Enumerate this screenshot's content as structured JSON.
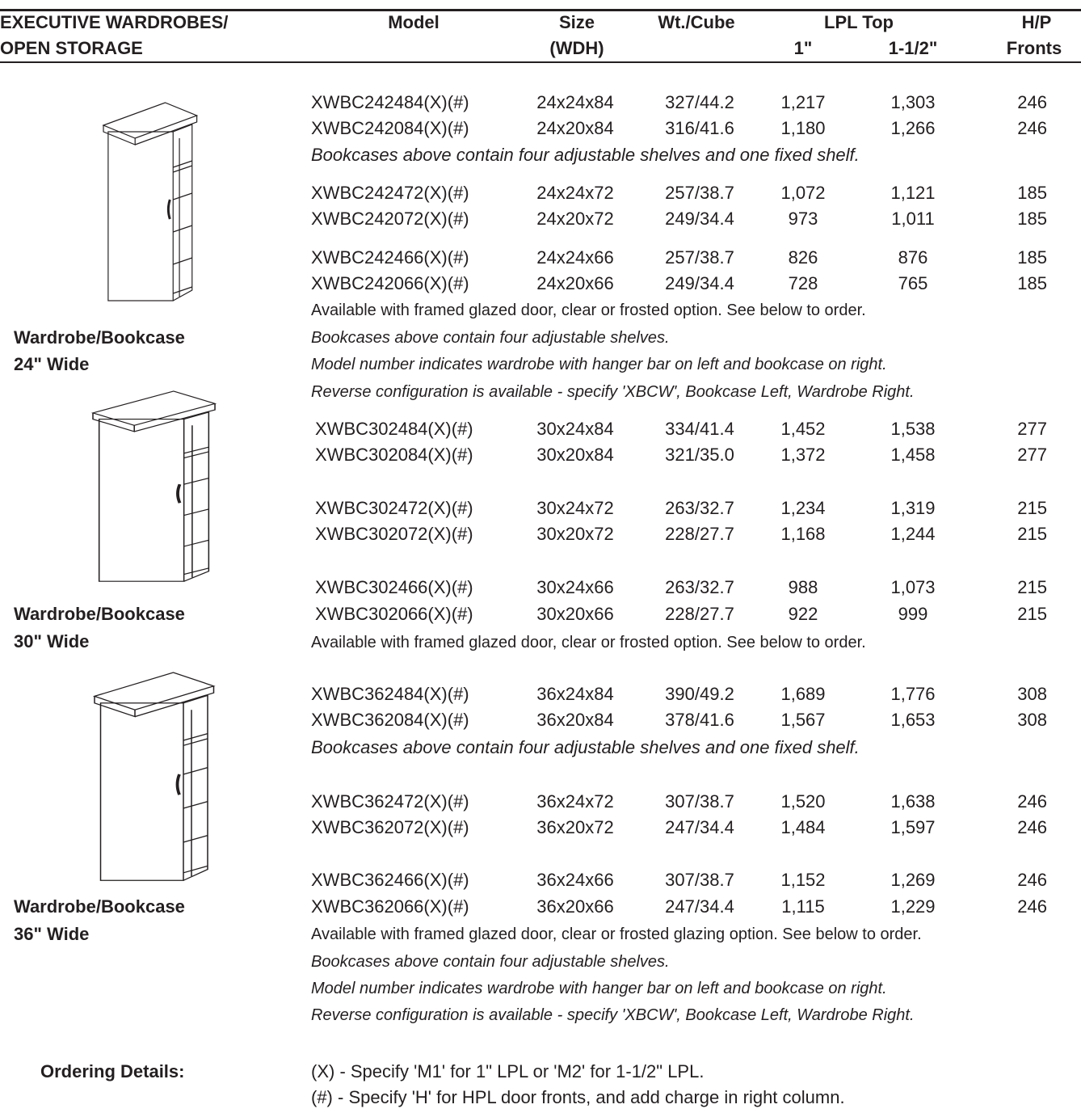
{
  "header": {
    "title": [
      "EXECUTIVE WARDROBES/",
      "OPEN STORAGE"
    ],
    "model": "Model",
    "size": [
      "Size",
      "(WDH)"
    ],
    "weight": "Wt./Cube",
    "lpl": "LPL Top",
    "lpl_1": "1\"",
    "lpl_15": "1-1/2\"",
    "hp": [
      "H/P",
      "Fronts"
    ]
  },
  "sections": [
    {
      "label": [
        "Wardrobe/Bookcase",
        "24\" Wide"
      ],
      "lines": [
        {
          "cells": [
            "XWBC242484(X)(#)",
            "24x24x84",
            "327/44.2",
            "1,217",
            "1,303",
            "246"
          ]
        },
        {
          "cells": [
            "XWBC242084(X)(#)",
            "24x20x84",
            "316/41.6",
            "1,180",
            "1,266",
            "246"
          ]
        },
        {
          "note": "Bookcases above contain four adjustable shelves and one fixed shelf.",
          "style": "italic-large"
        },
        {
          "cells": [
            "XWBC242472(X)(#)",
            "24x24x72",
            "257/38.7",
            "1,072",
            "1,121",
            "185"
          ]
        },
        {
          "cells": [
            "XWBC242072(X)(#)",
            "24x20x72",
            "249/34.4",
            "973",
            "1,011",
            "185"
          ]
        },
        {
          "cells": [
            "XWBC242466(X)(#)",
            "24x24x66",
            "257/38.7",
            "826",
            "876",
            "185"
          ]
        },
        {
          "cells": [
            "XWBC242066(X)(#)",
            "24x20x66",
            "249/34.4",
            "728",
            "765",
            "185"
          ]
        },
        {
          "note": "Available with framed glazed door, clear or frosted option. See below to order.",
          "style": "normal"
        },
        {
          "note": "Bookcases above contain four adjustable shelves.",
          "style": "italic"
        },
        {
          "note": "Model number indicates wardrobe with hanger bar on left and bookcase on right.",
          "style": "italic"
        },
        {
          "note": "Reverse configuration is available - specify 'XBCW', Bookcase Left, Wardrobe Right.",
          "style": "italic"
        }
      ]
    },
    {
      "label": [
        "Wardrobe/Bookcase",
        "30\" Wide"
      ],
      "lines": [
        {
          "cells": [
            "XWBC302484(X)(#)",
            "30x24x84",
            "334/41.4",
            "1,452",
            "1,538",
            "277"
          ]
        },
        {
          "cells": [
            "XWBC302084(X)(#)",
            "30x20x84",
            "321/35.0",
            "1,372",
            "1,458",
            "277"
          ]
        },
        {
          "cells": [
            "XWBC302472(X)(#)",
            "30x24x72",
            "263/32.7",
            "1,234",
            "1,319",
            "215"
          ]
        },
        {
          "cells": [
            "XWBC302072(X)(#)",
            "30x20x72",
            "228/27.7",
            "1,168",
            "1,244",
            "215"
          ]
        },
        {
          "cells": [
            "XWBC302466(X)(#)",
            "30x24x66",
            "263/32.7",
            "988",
            "1,073",
            "215"
          ]
        },
        {
          "cells": [
            "XWBC302066(X)(#)",
            "30x20x66",
            "228/27.7",
            "922",
            "999",
            "215"
          ]
        },
        {
          "note": "Available with framed glazed door, clear or frosted option. See below to order.",
          "style": "normal"
        }
      ]
    },
    {
      "label": [
        "Wardrobe/Bookcase",
        "36\" Wide"
      ],
      "lines": [
        {
          "cells": [
            "XWBC362484(X)(#)",
            "36x24x84",
            "390/49.2",
            "1,689",
            "1,776",
            "308"
          ]
        },
        {
          "cells": [
            "XWBC362084(X)(#)",
            "36x20x84",
            "378/41.6",
            "1,567",
            "1,653",
            "308"
          ]
        },
        {
          "note": "Bookcases above contain four adjustable shelves and one fixed shelf.",
          "style": "italic-large"
        },
        {
          "cells": [
            "XWBC362472(X)(#)",
            "36x24x72",
            "307/38.7",
            "1,520",
            "1,638",
            "246"
          ]
        },
        {
          "cells": [
            "XWBC362072(X)(#)",
            "36x20x72",
            "247/34.4",
            "1,484",
            "1,597",
            "246"
          ]
        },
        {
          "cells": [
            "XWBC362466(X)(#)",
            "36x24x66",
            "307/38.7",
            "1,152",
            "1,269",
            "246"
          ]
        },
        {
          "cells": [
            "XWBC362066(X)(#)",
            "36x20x66",
            "247/34.4",
            "1,115",
            "1,229",
            "246"
          ]
        },
        {
          "note": "Available with framed glazed door, clear or frosted glazing option. See below to order.",
          "style": "normal"
        },
        {
          "note": "Bookcases above contain four adjustable shelves.",
          "style": "italic"
        },
        {
          "note": "Model number indicates wardrobe with hanger bar on left and bookcase on right.",
          "style": "italic"
        },
        {
          "note": "Reverse configuration is available - specify 'XBCW', Bookcase Left, Wardrobe Right.",
          "style": "italic"
        }
      ]
    }
  ],
  "ordering": {
    "label": "Ordering Details:",
    "lines": [
      "(X) - Specify 'M1' for 1\" LPL or 'M2' for 1-1/2\" LPL.",
      "(#) - Specify 'H' for HPL door fronts, and add charge in right column."
    ]
  }
}
